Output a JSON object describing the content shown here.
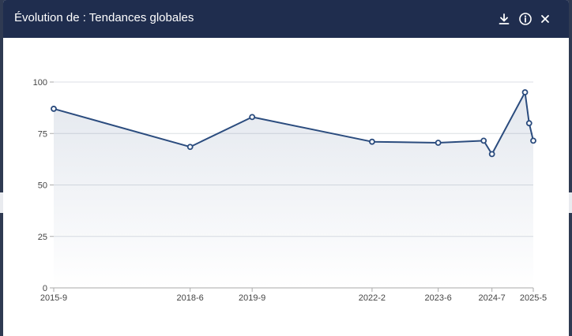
{
  "modal": {
    "title": "Évolution de : Tendances globales",
    "buttons": {
      "download": {
        "icon": "download-icon"
      },
      "info": {
        "icon": "info-icon"
      },
      "close": {
        "icon": "close-icon"
      }
    }
  },
  "colors": {
    "header_bg": "#1f2d4e",
    "line": "#2b4c7e",
    "grid": "#dcdfe4",
    "axis_text": "#444444"
  },
  "chart_data": {
    "type": "line",
    "x_type": "time",
    "x": [
      "2015-9",
      "2018-6",
      "2019-9",
      "2022-2",
      "2023-6",
      "2024-5",
      "2024-7",
      "2025-3",
      "2025-4",
      "2025-5"
    ],
    "x_ticks": [
      "2015-9",
      "2018-6",
      "2019-9",
      "2022-2",
      "2023-6",
      "2024-7",
      "2025-5"
    ],
    "series": [
      {
        "values": [
          87,
          68.5,
          83,
          71,
          70.5,
          71.5,
          65,
          95,
          80,
          71.5
        ]
      }
    ],
    "ylim": [
      0,
      100
    ],
    "y_ticks": [
      0,
      25,
      50,
      75,
      100
    ],
    "grid": true,
    "area_fill": true,
    "legend": "none",
    "title": "",
    "xlabel": "",
    "ylabel": ""
  }
}
